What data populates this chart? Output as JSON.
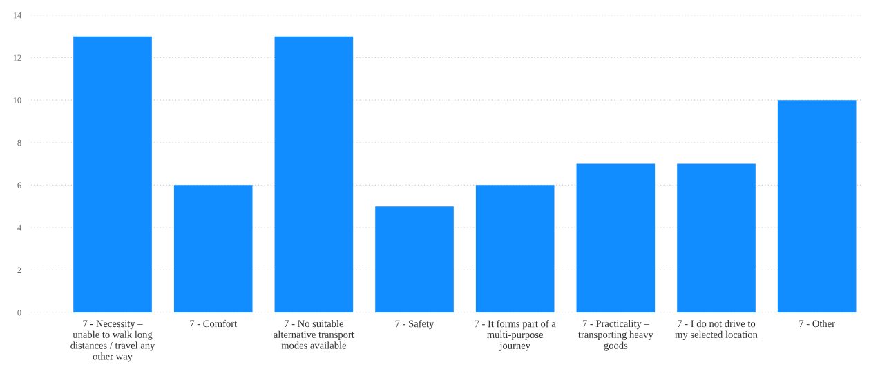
{
  "chart_data": {
    "type": "bar",
    "categories": [
      "7 - Necessity – unable to walk long distances / travel any other way",
      "7 - Comfort",
      "7 - No suitable alternative transport modes available",
      "7 - Safety",
      "7 - It forms part of a multi-purpose journey",
      "7 - Practicality – transporting heavy goods",
      "7 - I do not drive to my selected location",
      "7 - Other"
    ],
    "values": [
      13,
      6,
      13,
      5,
      6,
      7,
      7,
      10
    ],
    "color": "#118dff",
    "ylim": [
      0,
      14
    ],
    "yticks": [
      0,
      2,
      4,
      6,
      8,
      10,
      12,
      14
    ],
    "grid": "y"
  }
}
